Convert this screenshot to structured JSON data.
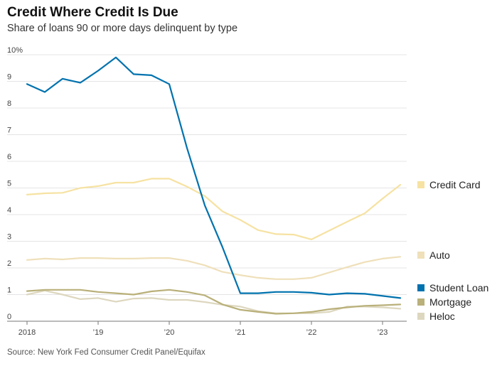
{
  "title": "Credit Where Credit Is Due",
  "subtitle": "Share of loans 90 or more days delinquent by type",
  "source": "Source: New York Fed Consumer Credit Panel/Equifax",
  "chart_data": {
    "type": "line",
    "title": "Credit Where Credit Is Due",
    "ylabel": "Share of loans 90 or more days delinquent by type",
    "xlabel": "",
    "ylim": [
      0,
      10
    ],
    "y_ticks": [
      0,
      1,
      2,
      3,
      4,
      5,
      6,
      7,
      8,
      9,
      10
    ],
    "y_tick_labels": [
      "0",
      "1",
      "2",
      "3",
      "4",
      "5",
      "6",
      "7",
      "8",
      "9",
      "10%"
    ],
    "x_ticks": [
      2018,
      2019,
      2020,
      2021,
      2022,
      2023
    ],
    "x_tick_labels": [
      "2018",
      "’19",
      "’20",
      "’21",
      "’22",
      "’23"
    ],
    "xlim": [
      2018,
      2023.3
    ],
    "grid": true,
    "x": [
      2018.0,
      2018.25,
      2018.5,
      2018.75,
      2019.0,
      2019.25,
      2019.5,
      2019.75,
      2020.0,
      2020.25,
      2020.5,
      2020.75,
      2021.0,
      2021.25,
      2021.5,
      2021.75,
      2022.0,
      2022.25,
      2022.5,
      2022.75,
      2023.0,
      2023.25
    ],
    "series": [
      {
        "name": "Credit Card",
        "color": "#f6e2a2",
        "values": [
          4.75,
          4.8,
          4.82,
          5.0,
          5.07,
          5.2,
          5.2,
          5.35,
          5.35,
          5.05,
          4.7,
          4.12,
          3.8,
          3.42,
          3.27,
          3.25,
          3.07,
          3.4,
          3.73,
          4.05,
          4.6,
          5.12
        ]
      },
      {
        "name": "Auto",
        "color": "#efe0ba",
        "values": [
          2.3,
          2.35,
          2.32,
          2.37,
          2.37,
          2.35,
          2.35,
          2.37,
          2.37,
          2.27,
          2.1,
          1.85,
          1.73,
          1.63,
          1.58,
          1.58,
          1.63,
          1.83,
          2.03,
          2.22,
          2.35,
          2.42
        ]
      },
      {
        "name": "Student Loan",
        "color": "#0072ae",
        "values": [
          8.9,
          8.6,
          9.1,
          8.95,
          9.4,
          9.9,
          9.27,
          9.23,
          8.9,
          6.5,
          4.35,
          2.77,
          1.05,
          1.05,
          1.1,
          1.1,
          1.07,
          1.0,
          1.05,
          1.03,
          0.95,
          0.87
        ]
      },
      {
        "name": "Mortgage",
        "color": "#b9b07a",
        "values": [
          1.13,
          1.18,
          1.18,
          1.18,
          1.1,
          1.05,
          1.0,
          1.12,
          1.18,
          1.1,
          0.97,
          0.63,
          0.43,
          0.35,
          0.28,
          0.3,
          0.35,
          0.45,
          0.52,
          0.58,
          0.6,
          0.63
        ]
      },
      {
        "name": "Heloc",
        "color": "#ddd7bf",
        "values": [
          1.0,
          1.15,
          1.0,
          0.83,
          0.87,
          0.73,
          0.85,
          0.87,
          0.8,
          0.8,
          0.72,
          0.62,
          0.55,
          0.38,
          0.3,
          0.3,
          0.3,
          0.35,
          0.55,
          0.55,
          0.52,
          0.47
        ]
      }
    ]
  }
}
